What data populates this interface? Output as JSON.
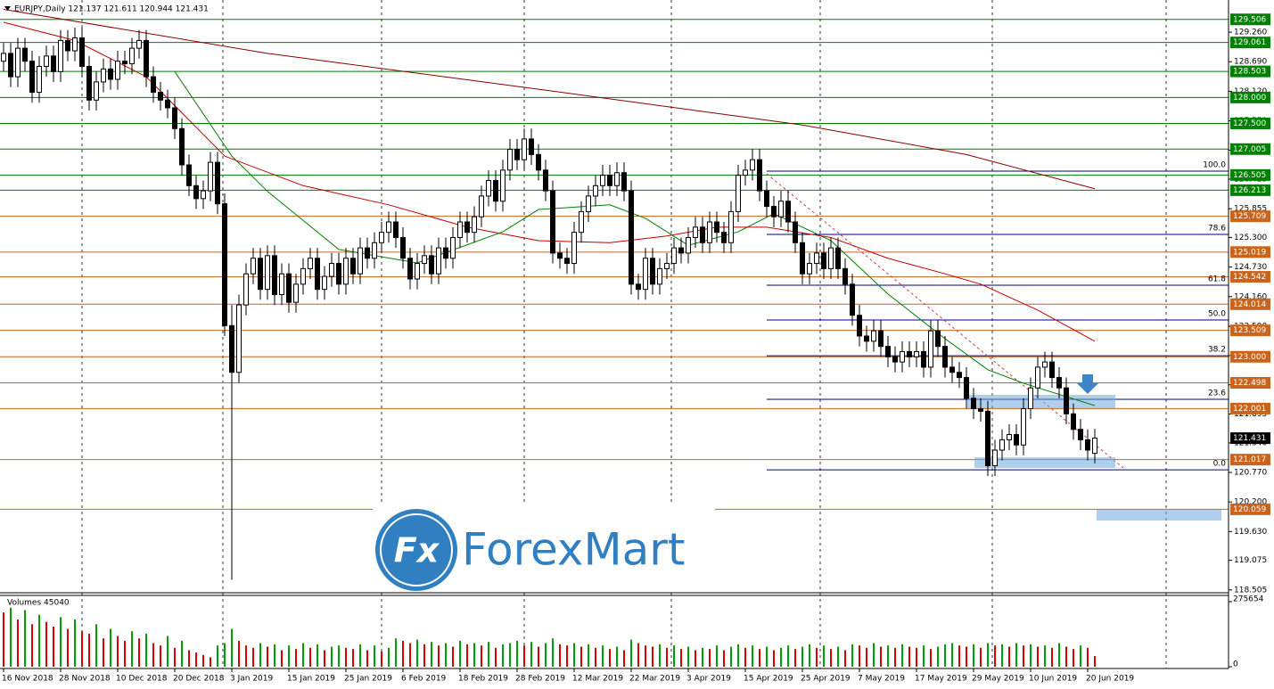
{
  "chart_data": {
    "type": "candlestick",
    "title": "EURJPY,Daily  121.137 121.611 120.944 121.431",
    "categories": [
      "16 Nov 2018",
      null,
      null,
      null,
      null,
      null,
      null,
      null,
      "28 Nov 2018",
      null,
      null,
      null,
      null,
      null,
      null,
      null,
      "10 Dec 2018",
      null,
      null,
      null,
      null,
      null,
      null,
      null,
      "20 Dec 2018",
      null,
      null,
      null,
      null,
      null,
      null,
      null,
      "3 Jan 2019",
      null,
      null,
      null,
      null,
      null,
      null,
      null,
      "15 Jan 2019",
      null,
      null,
      null,
      null,
      null,
      null,
      null,
      "25 Jan 2019",
      null,
      null,
      null,
      null,
      null,
      null,
      null,
      "6 Feb 2019",
      null,
      null,
      null,
      null,
      null,
      null,
      null,
      "18 Feb 2019",
      null,
      null,
      null,
      null,
      null,
      null,
      null,
      "28 Feb 2019",
      null,
      null,
      null,
      null,
      null,
      null,
      null,
      "12 Mar 2019",
      null,
      null,
      null,
      null,
      null,
      null,
      null,
      "22 Mar 2019",
      null,
      null,
      null,
      null,
      null,
      null,
      null,
      "3 Apr 2019",
      null,
      null,
      null,
      null,
      null,
      null,
      null,
      "15 Apr 2019",
      null,
      null,
      null,
      null,
      null,
      null,
      null,
      "25 Apr 2019",
      null,
      null,
      null,
      null,
      null,
      null,
      null,
      "7 May 2019",
      null,
      null,
      null,
      null,
      null,
      null,
      null,
      "17 May 2019",
      null,
      null,
      null,
      null,
      null,
      null,
      null,
      "29 May 2019",
      null,
      null,
      null,
      null,
      null,
      null,
      null,
      "10 Jun 2019",
      null,
      null,
      null,
      null,
      null,
      null,
      null,
      "20 Jun 2019",
      null
    ],
    "open": [
      128.7,
      128.85,
      128.4,
      128.95,
      128.7,
      128.1,
      128.6,
      128.8,
      128.5,
      129.1,
      128.9,
      129.15,
      128.6,
      127.95,
      128.3,
      128.55,
      128.35,
      128.7,
      128.65,
      128.95,
      129.1,
      128.4,
      128.1,
      127.95,
      127.8,
      127.4,
      126.7,
      126.3,
      126.05,
      126.2,
      126.75,
      125.95,
      123.6,
      122.7,
      124.0,
      124.6,
      124.9,
      124.3,
      124.95,
      124.2,
      124.6,
      124.05,
      124.4,
      124.7,
      124.9,
      124.3,
      124.55,
      124.8,
      124.4,
      124.9,
      124.6,
      125.1,
      124.9,
      125.2,
      125.4,
      125.6,
      125.3,
      124.9,
      124.5,
      124.8,
      124.95,
      124.6,
      125.1,
      124.9,
      125.3,
      125.6,
      125.4,
      125.7,
      126.1,
      126.4,
      126.0,
      126.6,
      127.0,
      126.8,
      127.2,
      126.9,
      126.6,
      126.2,
      125.0,
      124.9,
      124.8,
      125.4,
      125.8,
      126.1,
      126.3,
      126.5,
      126.3,
      126.55,
      126.2,
      124.4,
      124.3,
      124.9,
      124.4,
      124.7,
      124.8,
      125.1,
      125.0,
      125.3,
      125.5,
      125.2,
      125.6,
      125.4,
      125.2,
      125.8,
      126.5,
      126.6,
      126.8,
      126.2,
      125.9,
      125.7,
      126.0,
      125.6,
      125.2,
      124.6,
      124.8,
      125.0,
      124.7,
      125.1,
      124.7,
      124.4,
      123.8,
      123.4,
      123.3,
      123.5,
      123.2,
      123.0,
      122.9,
      123.1,
      123.0,
      123.1,
      122.8,
      123.5,
      123.2,
      122.8,
      122.7,
      122.6,
      122.2,
      122.0,
      121.95,
      120.9,
      121.2,
      121.4,
      121.5,
      121.3,
      122.0,
      122.4,
      122.8,
      122.9,
      122.6,
      122.4,
      121.9,
      121.6,
      121.4,
      121.137
    ],
    "high": [
      129.05,
      129.05,
      129.15,
      129.15,
      128.9,
      128.8,
      129.0,
      129.0,
      129.3,
      129.3,
      129.35,
      129.35,
      128.8,
      128.5,
      128.75,
      128.75,
      128.9,
      128.9,
      129.15,
      129.3,
      129.3,
      128.6,
      128.3,
      128.15,
      128.0,
      127.6,
      126.9,
      126.5,
      126.4,
      126.95,
      126.95,
      126.15,
      124.0,
      124.2,
      124.8,
      125.1,
      125.1,
      125.15,
      125.15,
      124.8,
      124.8,
      124.6,
      124.9,
      125.1,
      125.1,
      124.75,
      125.0,
      125.0,
      125.1,
      125.1,
      125.3,
      125.3,
      125.4,
      125.6,
      125.8,
      125.8,
      125.5,
      125.1,
      125.0,
      125.15,
      125.15,
      125.3,
      125.3,
      125.5,
      125.8,
      125.8,
      125.9,
      126.3,
      126.6,
      126.6,
      126.8,
      127.2,
      127.2,
      127.4,
      127.4,
      127.1,
      126.8,
      126.4,
      125.2,
      125.1,
      125.6,
      126.0,
      126.3,
      126.5,
      126.7,
      126.7,
      126.75,
      126.75,
      126.4,
      124.6,
      125.1,
      125.1,
      124.9,
      125.0,
      125.3,
      125.3,
      125.5,
      125.7,
      125.7,
      125.8,
      125.8,
      125.6,
      126.0,
      126.7,
      126.8,
      127.0,
      127.0,
      126.4,
      126.1,
      126.2,
      126.2,
      125.8,
      125.4,
      125.0,
      125.2,
      125.2,
      125.3,
      125.3,
      124.9,
      124.6,
      124.0,
      123.6,
      123.7,
      123.7,
      123.4,
      123.2,
      123.3,
      123.3,
      123.3,
      123.3,
      123.7,
      123.7,
      123.4,
      123.0,
      122.9,
      122.8,
      122.4,
      122.2,
      122.15,
      121.4,
      121.6,
      121.7,
      121.7,
      122.2,
      122.6,
      123.0,
      123.1,
      123.1,
      122.8,
      122.6,
      122.1,
      121.8,
      121.6,
      121.611
    ],
    "low": [
      128.5,
      128.2,
      128.2,
      128.5,
      127.9,
      127.9,
      128.4,
      128.3,
      128.3,
      128.7,
      128.7,
      128.4,
      127.75,
      127.75,
      128.1,
      128.15,
      128.15,
      128.45,
      128.45,
      128.75,
      128.2,
      127.9,
      127.75,
      127.6,
      127.2,
      126.5,
      126.1,
      125.85,
      125.85,
      126.0,
      125.75,
      123.4,
      118.7,
      122.5,
      123.8,
      124.4,
      124.1,
      124.1,
      124.0,
      124.0,
      123.85,
      123.85,
      124.2,
      124.5,
      124.1,
      124.1,
      124.35,
      124.2,
      124.2,
      124.4,
      124.4,
      124.7,
      124.7,
      125.0,
      125.2,
      125.1,
      124.7,
      124.3,
      124.3,
      124.6,
      124.4,
      124.4,
      124.7,
      124.7,
      125.1,
      125.2,
      125.2,
      125.5,
      125.9,
      125.8,
      125.8,
      126.4,
      126.6,
      126.6,
      126.7,
      126.4,
      126.0,
      124.8,
      124.7,
      124.6,
      124.6,
      125.2,
      125.6,
      125.9,
      126.1,
      126.1,
      126.1,
      126.0,
      124.2,
      124.1,
      124.1,
      124.2,
      124.2,
      124.5,
      124.6,
      124.8,
      124.8,
      125.1,
      125.0,
      125.0,
      125.2,
      125.0,
      125.0,
      125.6,
      126.3,
      126.4,
      126.0,
      125.7,
      125.5,
      125.5,
      125.4,
      125.0,
      124.4,
      124.4,
      124.6,
      124.5,
      124.5,
      124.5,
      124.2,
      123.6,
      123.2,
      123.1,
      123.1,
      123.0,
      122.8,
      122.7,
      122.7,
      122.8,
      122.8,
      122.6,
      122.6,
      123.0,
      122.6,
      122.5,
      122.4,
      122.0,
      121.8,
      121.75,
      120.7,
      120.7,
      121.0,
      121.2,
      121.1,
      121.1,
      121.8,
      122.2,
      122.6,
      122.4,
      122.2,
      121.7,
      121.4,
      121.2,
      121.0,
      120.944
    ],
    "close": [
      128.85,
      128.4,
      128.95,
      128.7,
      128.1,
      128.6,
      128.8,
      128.5,
      129.1,
      128.9,
      129.15,
      128.6,
      127.95,
      128.3,
      128.55,
      128.35,
      128.7,
      128.65,
      128.95,
      129.1,
      128.4,
      128.1,
      127.95,
      127.8,
      127.4,
      126.7,
      126.3,
      126.05,
      126.2,
      126.75,
      125.95,
      123.6,
      122.7,
      124.0,
      124.6,
      124.9,
      124.3,
      124.95,
      124.2,
      124.6,
      124.05,
      124.4,
      124.7,
      124.9,
      124.3,
      124.55,
      124.8,
      124.4,
      124.9,
      124.6,
      125.1,
      124.9,
      125.2,
      125.4,
      125.6,
      125.3,
      124.9,
      124.5,
      124.8,
      124.95,
      124.6,
      125.1,
      124.9,
      125.3,
      125.6,
      125.4,
      125.7,
      126.1,
      126.4,
      126.0,
      126.6,
      127.0,
      126.8,
      127.2,
      126.9,
      126.6,
      126.2,
      125.0,
      124.9,
      124.8,
      125.4,
      125.8,
      126.1,
      126.3,
      126.5,
      126.3,
      126.55,
      126.2,
      124.4,
      124.3,
      124.9,
      124.4,
      124.7,
      124.8,
      125.1,
      125.0,
      125.3,
      125.5,
      125.2,
      125.6,
      125.4,
      125.2,
      125.8,
      126.5,
      126.6,
      126.8,
      126.2,
      125.9,
      125.7,
      126.0,
      125.6,
      125.2,
      124.6,
      124.8,
      125.0,
      124.7,
      125.1,
      124.7,
      124.4,
      123.8,
      123.4,
      123.3,
      123.5,
      123.2,
      123.0,
      122.9,
      123.1,
      123.0,
      123.1,
      122.8,
      123.5,
      123.2,
      122.8,
      122.7,
      122.6,
      122.2,
      122.0,
      121.95,
      120.9,
      121.2,
      121.4,
      121.5,
      121.3,
      122.0,
      122.4,
      122.8,
      122.9,
      122.6,
      122.4,
      121.9,
      121.6,
      121.4,
      121.2,
      121.431
    ],
    "candle_colors": {
      "up": "#ffffff",
      "down": "#000000",
      "outline": "#000000"
    },
    "ylim": [
      118.45,
      129.88
    ],
    "yticks": [
      {
        "value": 129.26,
        "label": "129.260"
      },
      {
        "value": 128.69,
        "label": "128.690"
      },
      {
        "value": 128.12,
        "label": "128.120"
      },
      {
        "value": 127.55,
        "label": "127.550"
      },
      126.985,
      126.425,
      125.855,
      {
        "value": 125.3,
        "label": "125.300"
      },
      {
        "value": 124.73,
        "label": "124.730"
      },
      {
        "value": 124.16,
        "label": "124.160"
      },
      {
        "value": 123.59,
        "label": "123.590"
      },
      123.025,
      {
        "value": 122.46,
        "label": "122.460"
      },
      121.895,
      {
        "value": 121.34,
        "label": "121.340"
      },
      {
        "value": 120.77,
        "label": "120.770"
      },
      {
        "value": 120.2,
        "label": "120.200"
      },
      {
        "value": 119.63,
        "label": "119.630"
      },
      119.075,
      118.505
    ],
    "moving_averages": [
      {
        "color": "#008000",
        "x": [
          24,
          32,
          37,
          47,
          58,
          70,
          75,
          85,
          90,
          96,
          103,
          108,
          116,
          124,
          132,
          138,
          143,
          153
        ],
        "values": [
          128.5,
          126.87,
          126.19,
          125.07,
          124.81,
          125.41,
          125.84,
          125.93,
          125.67,
          125.15,
          125.41,
          125.76,
          125.24,
          124.21,
          123.35,
          122.75,
          122.49,
          122.06
        ]
      },
      {
        "color": "#c00000",
        "x": [
          0,
          10,
          20,
          31,
          42,
          54,
          65,
          75,
          85,
          93,
          100,
          107,
          116,
          124,
          132,
          137,
          145,
          153
        ],
        "values": [
          129.45,
          129.1,
          128.4,
          126.87,
          126.3,
          125.93,
          125.5,
          125.24,
          125.2,
          125.33,
          125.5,
          125.5,
          125.3,
          124.9,
          124.6,
          124.4,
          123.9,
          123.3
        ]
      },
      {
        "color": "#8b0000",
        "x": [
          0,
          37,
          75,
          112,
          135,
          153
        ],
        "values": [
          129.7,
          128.85,
          128.16,
          127.47,
          126.9,
          126.24
        ]
      }
    ],
    "levels": [
      129.506,
      129.061,
      128.503,
      {
        "value": 128.0,
        "label": "128.000"
      },
      {
        "value": 127.5,
        "label": "127.500"
      },
      127.005,
      126.505,
      126.213,
      125.709,
      125.019,
      124.542,
      124.014,
      123.509,
      {
        "value": 123.0,
        "label": "123.000"
      },
      122.498,
      122.001,
      121.017,
      120.059
    ],
    "level_colors": [
      "#008000",
      "#008000",
      "#008000",
      "#008000",
      "#008000",
      "#008000",
      "#008000",
      "#008000",
      "#c8641e",
      "#c8641e",
      "#c8641e",
      "#c8641e",
      "#c8641e",
      "#c8641e",
      "#c8641e",
      "#c8641e",
      "#c8641e",
      "#c8641e"
    ],
    "last_price": 121.431,
    "fibonacci": {
      "values": [
        126.58,
        125.36,
        124.38,
        123.71,
        123.02,
        122.18,
        120.82
      ],
      "labels": [
        "100.0",
        "78.6",
        "61.8",
        "50.0",
        "38.2",
        "23.6",
        "0.0"
      ],
      "color": "#000080"
    },
    "volume": {
      "title": "Volumes 45040",
      "ylim": [
        0,
        275654
      ],
      "yticks": [
        0,
        275654
      ],
      "colors": {
        "up": "#00a000",
        "down": "#e00000"
      },
      "values": [
        230000,
        250000,
        200000,
        240000,
        180000,
        220000,
        190000,
        170000,
        210000,
        160000,
        200000,
        150000,
        140000,
        180000,
        120000,
        160000,
        130000,
        110000,
        150000,
        120000,
        140000,
        100000,
        90000,
        130000,
        80000,
        110000,
        70000,
        60000,
        50000,
        40000,
        90000,
        100000,
        160000,
        110000,
        90000,
        80000,
        100000,
        85000,
        95000,
        70000,
        90000,
        75000,
        100000,
        80000,
        95000,
        70000,
        85000,
        90000,
        80000,
        75000,
        95000,
        70000,
        90000,
        65000,
        80000,
        120000,
        110000,
        100000,
        115000,
        95000,
        105000,
        90000,
        100000,
        85000,
        110000,
        95000,
        100000,
        90000,
        105000,
        80000,
        95000,
        100000,
        110000,
        90000,
        105000,
        85000,
        100000,
        120000,
        95000,
        90000,
        100000,
        85000,
        95000,
        80000,
        90000,
        75000,
        85000,
        70000,
        115000,
        100000,
        90000,
        85000,
        95000,
        80000,
        90000,
        75000,
        85000,
        70000,
        80000,
        75000,
        90000,
        70000,
        85000,
        95000,
        80000,
        90000,
        75000,
        85000,
        70000,
        80000,
        90000,
        75000,
        85000,
        95000,
        80000,
        90000,
        75000,
        85000,
        70000,
        95000,
        90000,
        80000,
        100000,
        85000,
        90000,
        80000,
        95000,
        85000,
        80000,
        90000,
        75000,
        85000,
        95000,
        100000,
        90000,
        85000,
        95000,
        80000,
        100000,
        90000,
        95000,
        85000,
        100000,
        90000,
        95000,
        85000,
        90000,
        80000,
        100000,
        85000,
        75000,
        90000,
        80000,
        45040
      ]
    },
    "watermark": "ForexMart",
    "watermark_icon": "Fx"
  }
}
